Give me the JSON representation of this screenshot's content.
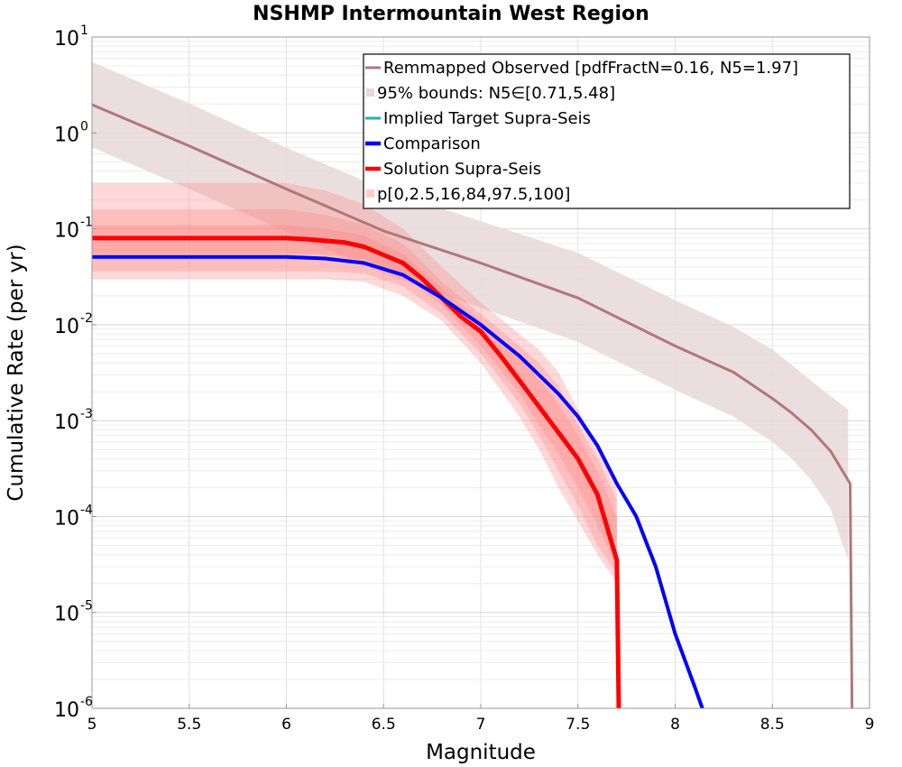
{
  "chart_data": {
    "type": "line",
    "title": "NSHMP Intermountain West Region",
    "xlabel": "Magnitude",
    "ylabel": "Cumulative Rate (per yr)",
    "xlim": [
      5,
      9
    ],
    "ylim": [
      1e-06,
      10
    ],
    "yscale": "log",
    "grid": true,
    "legend_position": "top-right",
    "x_ticks": [
      "5",
      "5.5",
      "6",
      "6.5",
      "7",
      "7.5",
      "8",
      "8.5",
      "9"
    ],
    "y_ticks": [
      {
        "base": "10",
        "exp": "1"
      },
      {
        "base": "10",
        "exp": "0"
      },
      {
        "base": "10",
        "exp": "-1"
      },
      {
        "base": "10",
        "exp": "-2"
      },
      {
        "base": "10",
        "exp": "-3"
      },
      {
        "base": "10",
        "exp": "-4"
      },
      {
        "base": "10",
        "exp": "-5"
      },
      {
        "base": "10",
        "exp": "-6"
      }
    ],
    "legend": [
      {
        "label": "Remmapped Observed [pdfFractN=0.16, N5=1.97]",
        "kind": "line",
        "color": "#b07878"
      },
      {
        "label": "95% bounds: N5∈[0.71,5.48]",
        "kind": "box",
        "color": "#e8d8d8"
      },
      {
        "label": "Implied Target Supra-Seis",
        "kind": "line",
        "color": "#20b2aa"
      },
      {
        "label": "Comparison",
        "kind": "line",
        "color": "#0000ff"
      },
      {
        "label": "Solution Supra-Seis",
        "kind": "line",
        "color": "#ff0000"
      },
      {
        "label": "p[0,2.5,16,84,97.5,100]",
        "kind": "box",
        "color": "#ffcccc"
      }
    ],
    "observed": {
      "color": "#b07878",
      "x": [
        5.0,
        5.5,
        6.0,
        6.5,
        7.0,
        7.5,
        8.0,
        8.3,
        8.5,
        8.6,
        8.7,
        8.8,
        8.9,
        8.91
      ],
      "y": [
        1.97,
        0.73,
        0.26,
        0.095,
        0.044,
        0.019,
        0.006,
        0.0032,
        0.0017,
        0.0012,
        0.0008,
        0.00048,
        0.00022,
        1e-06
      ]
    },
    "observed_bounds": {
      "color": "#e8d8d8",
      "x": [
        5.0,
        5.5,
        6.0,
        6.5,
        7.0,
        7.5,
        8.0,
        8.3,
        8.5,
        8.6,
        8.7,
        8.8,
        8.89
      ],
      "upper": [
        5.48,
        2.03,
        0.7,
        0.26,
        0.12,
        0.056,
        0.018,
        0.0095,
        0.0055,
        0.0038,
        0.0026,
        0.0018,
        0.0013
      ],
      "lower": [
        0.71,
        0.26,
        0.093,
        0.034,
        0.015,
        0.0066,
        0.0021,
        0.0011,
        0.0006,
        0.0004,
        0.00024,
        0.00012,
        3.5e-05
      ]
    },
    "comparison": {
      "color": "#0000ff",
      "x": [
        5.0,
        5.5,
        6.0,
        6.2,
        6.4,
        6.6,
        6.8,
        7.0,
        7.2,
        7.4,
        7.5,
        7.6,
        7.7,
        7.8,
        7.9,
        8.0,
        8.1,
        8.14
      ],
      "y": [
        0.051,
        0.051,
        0.051,
        0.049,
        0.044,
        0.033,
        0.019,
        0.01,
        0.0047,
        0.0019,
        0.0011,
        0.00055,
        0.00022,
        0.0001,
        3e-05,
        6e-06,
        1.7e-06,
        1e-06
      ]
    },
    "solution": {
      "color": "#ff0000",
      "x": [
        5.0,
        5.5,
        6.0,
        6.1,
        6.3,
        6.4,
        6.6,
        6.7,
        6.8,
        6.9,
        7.0,
        7.1,
        7.2,
        7.3,
        7.4,
        7.5,
        7.6,
        7.7,
        7.71
      ],
      "y": [
        0.08,
        0.08,
        0.08,
        0.078,
        0.072,
        0.065,
        0.044,
        0.03,
        0.019,
        0.012,
        0.0085,
        0.0048,
        0.0026,
        0.0014,
        0.00075,
        0.0004,
        0.00017,
        3.5e-05,
        1e-06
      ]
    },
    "solution_bands": {
      "color": "#ff8080",
      "x": [
        5.0,
        5.5,
        6.0,
        6.2,
        6.4,
        6.6,
        6.8,
        7.0,
        7.2,
        7.3,
        7.4,
        7.5,
        7.6,
        7.7
      ],
      "bands": [
        {
          "name": "0-100",
          "upper": [
            0.3,
            0.3,
            0.3,
            0.25,
            0.18,
            0.1,
            0.04,
            0.017,
            0.008,
            0.0055,
            0.0032,
            0.0013,
            0.00055,
            0.00022
          ],
          "lower": [
            0.03,
            0.03,
            0.03,
            0.03,
            0.028,
            0.02,
            0.011,
            0.004,
            0.0011,
            0.0005,
            0.0002,
            9e-05,
            4e-05,
            2e-05
          ]
        },
        {
          "name": "2.5-97.5",
          "upper": [
            0.16,
            0.16,
            0.16,
            0.14,
            0.11,
            0.07,
            0.028,
            0.013,
            0.006,
            0.004,
            0.0023,
            0.0009,
            0.0004,
            0.00015
          ],
          "lower": [
            0.036,
            0.036,
            0.036,
            0.036,
            0.034,
            0.025,
            0.013,
            0.005,
            0.0015,
            0.0007,
            0.0003,
            0.00013,
            5e-05,
            2.5e-05
          ]
        },
        {
          "name": "16-84",
          "upper": [
            0.11,
            0.11,
            0.11,
            0.1,
            0.085,
            0.055,
            0.024,
            0.011,
            0.0045,
            0.0027,
            0.0015,
            0.0007,
            0.0003,
            0.0001
          ],
          "lower": [
            0.055,
            0.055,
            0.055,
            0.054,
            0.048,
            0.033,
            0.016,
            0.006,
            0.0019,
            0.0009,
            0.00045,
            0.0002,
            8e-05,
            3e-05
          ]
        }
      ]
    }
  }
}
